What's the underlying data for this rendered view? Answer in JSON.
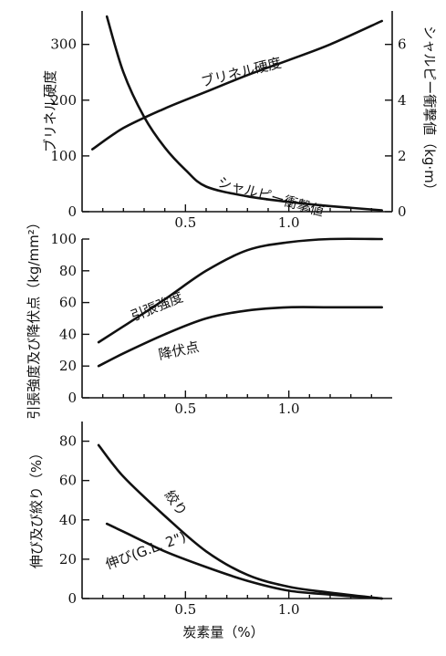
{
  "chart_data": [
    {
      "type": "line",
      "xlim": [
        0,
        1.5
      ],
      "x_ticks": [
        "0.5",
        "1.0"
      ],
      "ylim_left": [
        0,
        360
      ],
      "y_ticks_left": [
        "0",
        "100",
        "200",
        "300"
      ],
      "ylabel_left": "ブリネル硬度",
      "ylim_right": [
        0,
        7.2
      ],
      "y_ticks_right": [
        "0",
        "2",
        "4",
        "6"
      ],
      "ylabel_right": "シャルピー衝撃値（kg·m）",
      "series": [
        {
          "name": "ブリネル硬度",
          "axis": "left",
          "x": [
            0.05,
            0.2,
            0.4,
            0.6,
            0.8,
            1.0,
            1.2,
            1.45
          ],
          "values": [
            112,
            150,
            185,
            215,
            245,
            272,
            300,
            342
          ]
        },
        {
          "name": "シャルピー衝撃値",
          "axis": "right",
          "x": [
            0.12,
            0.2,
            0.3,
            0.4,
            0.5,
            0.6,
            0.8,
            1.0,
            1.2,
            1.45
          ],
          "values": [
            7.0,
            5.0,
            3.4,
            2.3,
            1.5,
            0.9,
            0.55,
            0.35,
            0.2,
            0.05
          ]
        }
      ]
    },
    {
      "type": "line",
      "xlim": [
        0,
        1.5
      ],
      "x_ticks": [
        "0.5",
        "1.0"
      ],
      "ylim": [
        0,
        100
      ],
      "y_ticks": [
        "0",
        "20",
        "40",
        "60",
        "80",
        "100"
      ],
      "ylabel": "引張強度及び降伏点（kg/mm²）",
      "series": [
        {
          "name": "引張強度",
          "x": [
            0.08,
            0.2,
            0.4,
            0.6,
            0.8,
            1.0,
            1.2,
            1.45
          ],
          "values": [
            35,
            45,
            62,
            80,
            93,
            98,
            100,
            100
          ]
        },
        {
          "name": "降伏点",
          "x": [
            0.08,
            0.2,
            0.4,
            0.6,
            0.8,
            1.0,
            1.2,
            1.45
          ],
          "values": [
            20,
            28,
            40,
            50,
            55,
            57,
            57,
            57
          ]
        }
      ]
    },
    {
      "type": "line",
      "xlim": [
        0,
        1.5
      ],
      "x_ticks": [
        "0.5",
        "1.0"
      ],
      "ylim": [
        0,
        90
      ],
      "y_ticks": [
        "0",
        "20",
        "40",
        "60",
        "80"
      ],
      "ylabel": "伸び及び絞り（%）",
      "xlabel": "炭素量（%）",
      "series": [
        {
          "name": "絞り",
          "x": [
            0.08,
            0.2,
            0.4,
            0.6,
            0.8,
            1.0,
            1.2,
            1.45
          ],
          "values": [
            78,
            62,
            42,
            24,
            12,
            6,
            3,
            0
          ]
        },
        {
          "name": "伸び(G.L. 2\")",
          "x": [
            0.12,
            0.2,
            0.4,
            0.6,
            0.8,
            1.0,
            1.2,
            1.45
          ],
          "values": [
            38,
            34,
            24,
            16,
            9,
            4,
            2,
            0
          ]
        }
      ]
    }
  ]
}
